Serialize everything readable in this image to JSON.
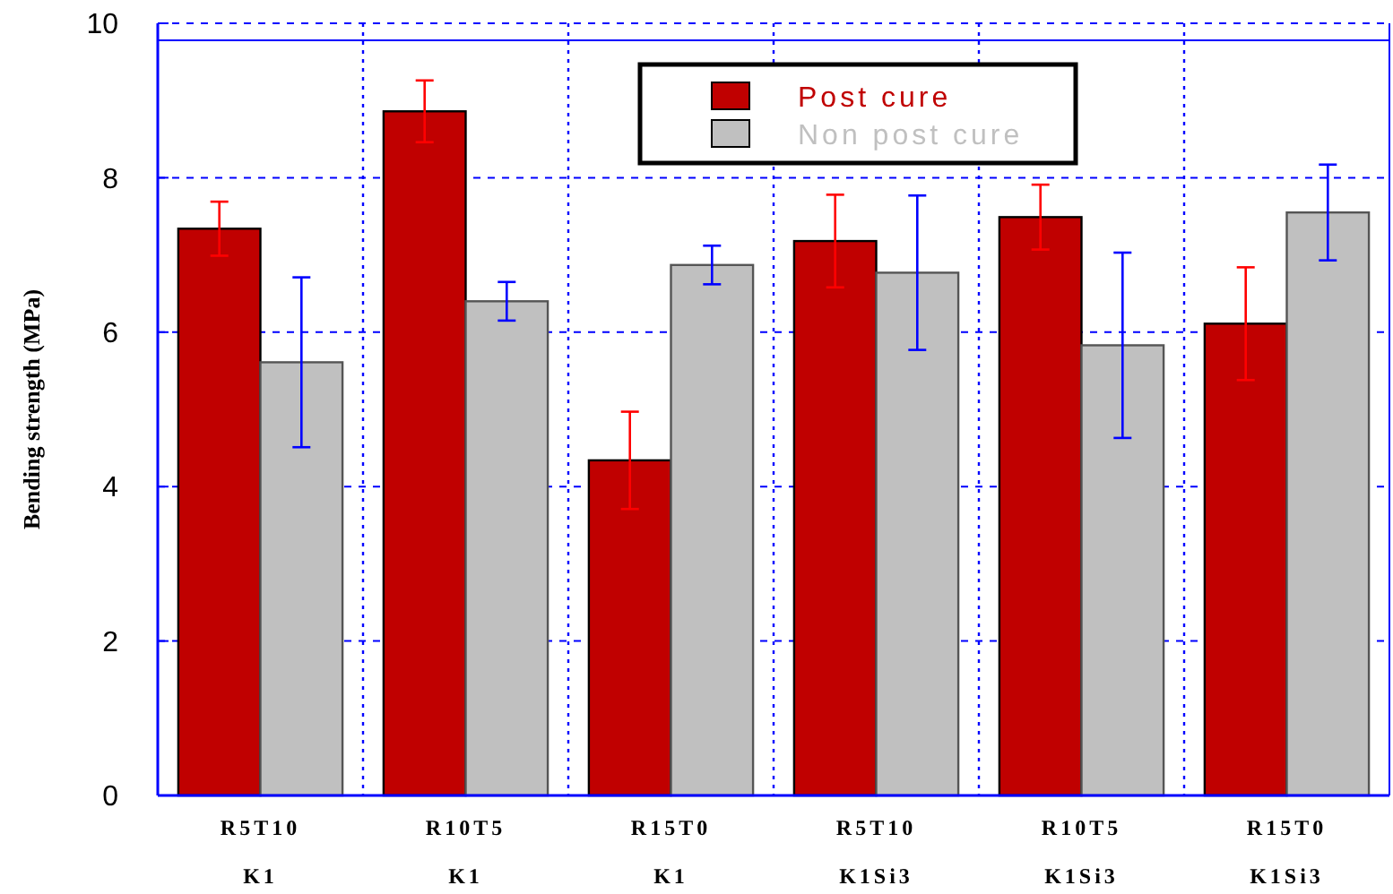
{
  "chart_data": {
    "type": "bar",
    "ylabel": "Bending strength (MPa)",
    "categories": [
      "R5T10\nK1",
      "R10T5\nK1",
      "R15T0\nK1",
      "R5T10\nK1Si3",
      "R10T5\nK1Si3",
      "R15T0\nK1Si3"
    ],
    "series": [
      {
        "name": "Post cure",
        "color": "#c00000",
        "values": [
          7.34,
          8.86,
          4.34,
          7.18,
          7.49,
          6.11
        ],
        "errors": [
          0.35,
          0.4,
          0.63,
          0.6,
          0.42,
          0.73
        ]
      },
      {
        "name": "Non post cure",
        "color": "#c0c0c0",
        "values": [
          5.61,
          6.4,
          6.87,
          6.77,
          5.83,
          7.55
        ],
        "errors": [
          1.1,
          0.25,
          0.25,
          1.0,
          1.2,
          0.62
        ]
      }
    ],
    "ylim": [
      0,
      10
    ],
    "yticks": [
      0,
      2,
      4,
      6,
      8,
      10
    ],
    "grid": true,
    "legend": "top",
    "ref_lines": [
      {
        "axis": "y",
        "value": 9.78,
        "color": "#0000ff"
      }
    ]
  }
}
